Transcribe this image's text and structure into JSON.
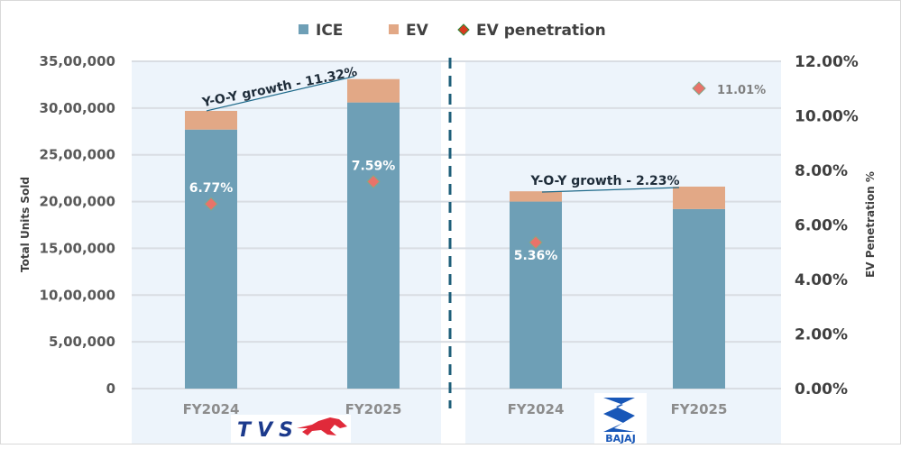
{
  "chart_data": {
    "type": "bar",
    "stacked": true,
    "groups": [
      {
        "brand": "TVS",
        "categories": [
          "FY2024",
          "FY2025"
        ],
        "yoy_label": "Y-O-Y growth - 11.32%"
      },
      {
        "brand": "BAJAJ",
        "categories": [
          "FY2024",
          "FY2025"
        ],
        "yoy_label": "Y-O-Y growth - 2.23%"
      }
    ],
    "categories": [
      "FY2024",
      "FY2025",
      "FY2024",
      "FY2025"
    ],
    "series": [
      {
        "name": "ICE",
        "color": "#6e9fb6",
        "values": [
          2770000,
          3060000,
          2000000,
          1920000
        ]
      },
      {
        "name": "EV",
        "color": "#e2a886",
        "values": [
          200000,
          250000,
          110000,
          240000
        ]
      },
      {
        "name": "EV penetration",
        "color": "#e8736a",
        "axis": "right",
        "values": [
          6.77,
          7.59,
          5.36,
          11.01
        ],
        "labels": [
          "6.77%",
          "7.59%",
          "5.36%",
          "11.01%"
        ]
      }
    ],
    "ylabel": "Total Units Sold",
    "ylim": [
      0,
      3500000
    ],
    "yticks": [
      "0",
      "5,00,000",
      "10,00,000",
      "15,00,000",
      "20,00,000",
      "25,00,000",
      "30,00,000",
      "35,00,000"
    ],
    "y2label": "EV Penetration %",
    "y2lim": [
      0,
      12
    ],
    "y2ticks": [
      "0.00%",
      "2.00%",
      "4.00%",
      "6.00%",
      "8.00%",
      "10.00%",
      "12.00%"
    ],
    "grid": true,
    "legend": "top",
    "legend_entries": [
      "ICE",
      "EV",
      "EV penetration"
    ]
  }
}
